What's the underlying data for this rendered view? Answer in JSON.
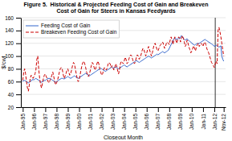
{
  "chart_data": {
    "type": "line",
    "title": "Figure 5.  Historical & Projected Feeding Cost of Gain and Breakeven\nCost of Gain for Steers in Kansas Feedyards",
    "x_label": "Closeout Month",
    "y_label": "$/cwt",
    "categories": [
      "Jan-95",
      null,
      null,
      null,
      null,
      null,
      null,
      null,
      null,
      null,
      null,
      null,
      "Jan-96",
      null,
      null,
      null,
      null,
      null,
      null,
      null,
      null,
      null,
      null,
      null,
      "Jan-97",
      null,
      null,
      null,
      null,
      null,
      null,
      null,
      null,
      null,
      null,
      null,
      "Jan-98",
      null,
      null,
      null,
      null,
      null,
      null,
      null,
      null,
      null,
      null,
      null,
      "Jan-99",
      null,
      null,
      null,
      null,
      null,
      null,
      null,
      null,
      null,
      null,
      null,
      "Jan-00",
      null,
      null,
      null,
      null,
      null,
      null,
      null,
      null,
      null,
      null,
      null,
      "Jan-01",
      null,
      null,
      null,
      null,
      null,
      null,
      null,
      null,
      null,
      null,
      null,
      "Jan-02",
      null,
      null,
      null,
      null,
      null,
      null,
      null,
      null,
      null,
      null,
      null,
      "Jan-03",
      null,
      null,
      null,
      null,
      null,
      null,
      null,
      null,
      null,
      null,
      null,
      "Jan-04",
      null,
      null,
      null,
      null,
      null,
      null,
      null,
      null,
      null,
      null,
      null,
      "Jan-05",
      null,
      null,
      null,
      null,
      null,
      null,
      null,
      null,
      null,
      null,
      null,
      "Jan-06",
      null,
      null,
      null,
      null,
      null,
      null,
      null,
      null,
      null,
      null,
      null,
      "Jan-07",
      null,
      null,
      null,
      null,
      null,
      null,
      null,
      null,
      null,
      null,
      null,
      "Jan-08",
      null,
      null,
      null,
      null,
      null,
      null,
      null,
      null,
      null,
      null,
      null,
      "Jan-09",
      null,
      null,
      null,
      null,
      null,
      null,
      null,
      null,
      null,
      null,
      null,
      "Jan-10",
      null,
      null,
      null,
      null,
      null,
      null,
      null,
      null,
      null,
      null,
      null,
      "Jan-11",
      null,
      null,
      null,
      null,
      null,
      null,
      null,
      null,
      null,
      null,
      null,
      "Jan-12",
      null,
      null,
      null,
      null,
      null,
      null,
      null,
      null,
      null,
      "Nov-12"
    ],
    "series": [
      {
        "name": "Feeding Cost of Gain",
        "color": "#3366cc",
        "line_style": "solid",
        "values": [
          60,
          62,
          62,
          61,
          60,
          59,
          58,
          59,
          60,
          61,
          63,
          63,
          63,
          64,
          65,
          64,
          63,
          62,
          61,
          60,
          59,
          60,
          61,
          62,
          62,
          63,
          64,
          65,
          65,
          65,
          64,
          63,
          62,
          61,
          60,
          59,
          60,
          61,
          62,
          63,
          64,
          65,
          65,
          65,
          64,
          65,
          66,
          67,
          68,
          67,
          66,
          65,
          66,
          67,
          68,
          69,
          68,
          67,
          66,
          65,
          66,
          67,
          68,
          69,
          70,
          71,
          72,
          73,
          72,
          71,
          70,
          69,
          70,
          71,
          72,
          73,
          74,
          75,
          76,
          77,
          78,
          79,
          80,
          81,
          80,
          79,
          78,
          77,
          76,
          77,
          78,
          79,
          80,
          81,
          82,
          83,
          82,
          81,
          82,
          83,
          82,
          81,
          80,
          81,
          82,
          83,
          84,
          85,
          86,
          85,
          84,
          83,
          84,
          85,
          86,
          87,
          88,
          89,
          90,
          91,
          92,
          93,
          92,
          91,
          90,
          91,
          92,
          93,
          94,
          95,
          96,
          97,
          98,
          99,
          100,
          99,
          98,
          97,
          98,
          99,
          100,
          101,
          102,
          103,
          102,
          103,
          104,
          105,
          106,
          107,
          106,
          105,
          106,
          107,
          108,
          109,
          112,
          115,
          118,
          121,
          124,
          127,
          128,
          127,
          126,
          127,
          128,
          127,
          130,
          132,
          130,
          128,
          126,
          125,
          126,
          127,
          125,
          124,
          123,
          122,
          120,
          119,
          118,
          117,
          118,
          119,
          120,
          119,
          120,
          121,
          122,
          123,
          124,
          125,
          126,
          125,
          124,
          123,
          122,
          121,
          120,
          119,
          118,
          117,
          115,
          116,
          117,
          116,
          115,
          114,
          115,
          116,
          100,
          95,
          92
        ]
      },
      {
        "name": "Breakeven Feeding Cost of Gain",
        "color": "#cc0000",
        "line_style": "dashed",
        "values": [
          62,
          75,
          80,
          72,
          60,
          50,
          45,
          55,
          65,
          70,
          68,
          65,
          68,
          72,
          78,
          95,
          100,
          80,
          65,
          55,
          50,
          58,
          65,
          70,
          72,
          68,
          65,
          60,
          58,
          62,
          65,
          70,
          75,
          68,
          60,
          55,
          58,
          62,
          68,
          75,
          80,
          82,
          80,
          72,
          65,
          68,
          72,
          78,
          80,
          75,
          70,
          72,
          78,
          85,
          90,
          88,
          80,
          72,
          65,
          60,
          62,
          70,
          78,
          85,
          90,
          92,
          88,
          82,
          75,
          70,
          68,
          72,
          78,
          85,
          90,
          88,
          82,
          78,
          82,
          88,
          92,
          88,
          80,
          75,
          70,
          72,
          78,
          82,
          80,
          78,
          82,
          88,
          90,
          88,
          82,
          85,
          82,
          78,
          82,
          88,
          85,
          78,
          72,
          78,
          88,
          92,
          90,
          88,
          92,
          98,
          95,
          88,
          90,
          95,
          100,
          102,
          100,
          95,
          90,
          88,
          92,
          98,
          102,
          100,
          95,
          98,
          102,
          108,
          112,
          110,
          105,
          100,
          105,
          110,
          115,
          110,
          105,
          100,
          105,
          112,
          118,
          120,
          115,
          110,
          108,
          112,
          116,
          118,
          120,
          122,
          118,
          112,
          115,
          120,
          122,
          120,
          118,
          125,
          130,
          125,
          118,
          125,
          130,
          125,
          120,
          125,
          130,
          128,
          122,
          128,
          132,
          128,
          122,
          115,
          118,
          125,
          120,
          114,
          110,
          105,
          108,
          112,
          116,
          112,
          108,
          115,
          118,
          120,
          115,
          118,
          120,
          118,
          115,
          120,
          122,
          118,
          112,
          108,
          105,
          100,
          95,
          90,
          88,
          85,
          82,
          88,
          92,
          88,
          140,
          145,
          138,
          130,
          120,
          110,
          100
        ]
      }
    ],
    "vline": 205,
    "ylim": [
      20,
      160
    ],
    "yticks": [
      20,
      40,
      60,
      80,
      100,
      120,
      140,
      160
    ],
    "grid": true,
    "legend": "upper left"
  }
}
